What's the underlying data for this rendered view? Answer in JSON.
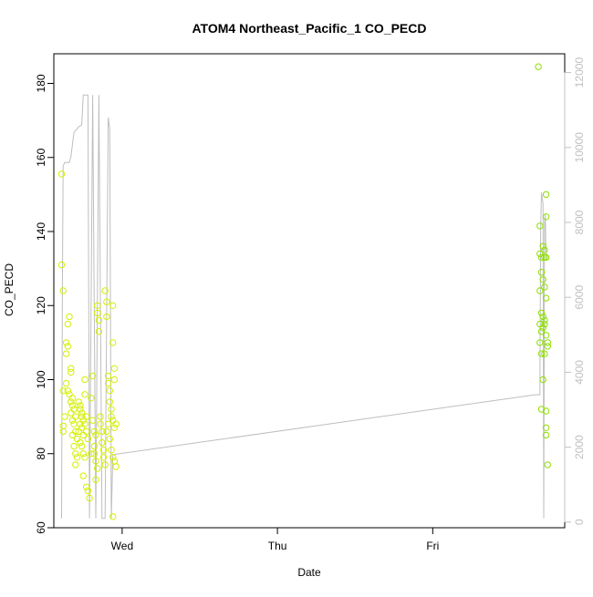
{
  "chart_data": {
    "type": "scatter",
    "title": "ATOM4 Northeast_Pacific_1 CO_PECD",
    "xlabel": "Date",
    "ylabel": "CO_PECD",
    "x_ticks": [
      "Wed",
      "Thu",
      "Fri"
    ],
    "y_ticks": [
      60,
      80,
      100,
      120,
      140,
      160,
      180
    ],
    "y_right_ticks": [
      0,
      2000,
      4000,
      6000,
      8000,
      10000,
      12000
    ],
    "ylim": [
      60,
      188
    ],
    "y_right_lim": [
      -150,
      12500
    ],
    "xlim_days_from_wed": [
      -0.44,
      2.85
    ],
    "colors": {
      "early_points": "#d4f000",
      "late_points": "#8ee000",
      "line": "#bebebe",
      "axis": "#000000",
      "right_axis": "#c0c0c0"
    },
    "points": [
      {
        "t": -0.39,
        "y": 155.5
      },
      {
        "t": -0.39,
        "y": 131
      },
      {
        "t": -0.38,
        "y": 124
      },
      {
        "t": -0.38,
        "y": 97
      },
      {
        "t": -0.37,
        "y": 90
      },
      {
        "t": -0.38,
        "y": 87.5
      },
      {
        "t": -0.38,
        "y": 86
      },
      {
        "t": -0.36,
        "y": 110
      },
      {
        "t": -0.36,
        "y": 107
      },
      {
        "t": -0.35,
        "y": 115
      },
      {
        "t": -0.34,
        "y": 117
      },
      {
        "t": -0.35,
        "y": 109
      },
      {
        "t": -0.33,
        "y": 103
      },
      {
        "t": -0.33,
        "y": 102
      },
      {
        "t": -0.36,
        "y": 99
      },
      {
        "t": -0.35,
        "y": 97
      },
      {
        "t": -0.34,
        "y": 96
      },
      {
        "t": -0.32,
        "y": 95
      },
      {
        "t": -0.33,
        "y": 94
      },
      {
        "t": -0.32,
        "y": 93
      },
      {
        "t": -0.31,
        "y": 92
      },
      {
        "t": -0.33,
        "y": 91
      },
      {
        "t": -0.3,
        "y": 90
      },
      {
        "t": -0.32,
        "y": 89
      },
      {
        "t": -0.31,
        "y": 88
      },
      {
        "t": -0.3,
        "y": 86
      },
      {
        "t": -0.32,
        "y": 85
      },
      {
        "t": -0.29,
        "y": 84
      },
      {
        "t": -0.31,
        "y": 82
      },
      {
        "t": -0.3,
        "y": 80
      },
      {
        "t": -0.29,
        "y": 79
      },
      {
        "t": -0.3,
        "y": 77
      },
      {
        "t": -0.28,
        "y": 94
      },
      {
        "t": -0.27,
        "y": 93
      },
      {
        "t": -0.27,
        "y": 92
      },
      {
        "t": -0.26,
        "y": 91
      },
      {
        "t": -0.26,
        "y": 90
      },
      {
        "t": -0.25,
        "y": 89
      },
      {
        "t": -0.27,
        "y": 88
      },
      {
        "t": -0.26,
        "y": 87
      },
      {
        "t": -0.28,
        "y": 86
      },
      {
        "t": -0.25,
        "y": 85
      },
      {
        "t": -0.27,
        "y": 83
      },
      {
        "t": -0.26,
        "y": 82
      },
      {
        "t": -0.25,
        "y": 80
      },
      {
        "t": -0.24,
        "y": 100
      },
      {
        "t": -0.24,
        "y": 96
      },
      {
        "t": -0.23,
        "y": 90
      },
      {
        "t": -0.24,
        "y": 88
      },
      {
        "t": -0.23,
        "y": 86
      },
      {
        "t": -0.22,
        "y": 84
      },
      {
        "t": -0.24,
        "y": 79
      },
      {
        "t": -0.25,
        "y": 74
      },
      {
        "t": -0.23,
        "y": 71
      },
      {
        "t": -0.22,
        "y": 70
      },
      {
        "t": -0.21,
        "y": 68
      },
      {
        "t": -0.2,
        "y": 80
      },
      {
        "t": -0.2,
        "y": 95
      },
      {
        "t": -0.19,
        "y": 101
      },
      {
        "t": -0.19,
        "y": 89
      },
      {
        "t": -0.18,
        "y": 86
      },
      {
        "t": -0.17,
        "y": 85
      },
      {
        "t": -0.18,
        "y": 82
      },
      {
        "t": -0.18,
        "y": 80
      },
      {
        "t": -0.17,
        "y": 78
      },
      {
        "t": -0.16,
        "y": 76
      },
      {
        "t": -0.17,
        "y": 73
      },
      {
        "t": -0.16,
        "y": 120
      },
      {
        "t": -0.16,
        "y": 118
      },
      {
        "t": -0.15,
        "y": 116
      },
      {
        "t": -0.15,
        "y": 113
      },
      {
        "t": -0.14,
        "y": 90
      },
      {
        "t": -0.14,
        "y": 88
      },
      {
        "t": -0.13,
        "y": 86
      },
      {
        "t": -0.13,
        "y": 83
      },
      {
        "t": -0.12,
        "y": 81
      },
      {
        "t": -0.12,
        "y": 79
      },
      {
        "t": -0.11,
        "y": 77
      },
      {
        "t": -0.11,
        "y": 124
      },
      {
        "t": -0.1,
        "y": 121
      },
      {
        "t": -0.1,
        "y": 117
      },
      {
        "t": -0.09,
        "y": 101
      },
      {
        "t": -0.09,
        "y": 99
      },
      {
        "t": -0.08,
        "y": 97
      },
      {
        "t": -0.08,
        "y": 94
      },
      {
        "t": -0.07,
        "y": 92
      },
      {
        "t": -0.07,
        "y": 90
      },
      {
        "t": -0.09,
        "y": 88
      },
      {
        "t": -0.1,
        "y": 86
      },
      {
        "t": -0.08,
        "y": 84
      },
      {
        "t": -0.07,
        "y": 81
      },
      {
        "t": -0.06,
        "y": 79
      },
      {
        "t": -0.06,
        "y": 120
      },
      {
        "t": -0.06,
        "y": 110
      },
      {
        "t": -0.05,
        "y": 103
      },
      {
        "t": -0.05,
        "y": 100
      },
      {
        "t": -0.06,
        "y": 89
      },
      {
        "t": -0.05,
        "y": 87
      },
      {
        "t": -0.05,
        "y": 78
      },
      {
        "t": -0.04,
        "y": 76.5
      },
      {
        "t": -0.06,
        "y": 63
      },
      {
        "t": -0.04,
        "y": 88
      },
      {
        "t": 2.68,
        "y": 184.5
      },
      {
        "t": 2.69,
        "y": 141.5
      },
      {
        "t": 2.69,
        "y": 134
      },
      {
        "t": 2.7,
        "y": 133
      },
      {
        "t": 2.7,
        "y": 129
      },
      {
        "t": 2.69,
        "y": 124
      },
      {
        "t": 2.7,
        "y": 118
      },
      {
        "t": 2.69,
        "y": 115
      },
      {
        "t": 2.7,
        "y": 113
      },
      {
        "t": 2.69,
        "y": 110
      },
      {
        "t": 2.71,
        "y": 136
      },
      {
        "t": 2.72,
        "y": 135
      },
      {
        "t": 2.72,
        "y": 133
      },
      {
        "t": 2.71,
        "y": 127
      },
      {
        "t": 2.72,
        "y": 125
      },
      {
        "t": 2.71,
        "y": 117
      },
      {
        "t": 2.72,
        "y": 116
      },
      {
        "t": 2.71,
        "y": 114
      },
      {
        "t": 2.7,
        "y": 107
      },
      {
        "t": 2.71,
        "y": 100
      },
      {
        "t": 2.73,
        "y": 150
      },
      {
        "t": 2.73,
        "y": 144
      },
      {
        "t": 2.73,
        "y": 133
      },
      {
        "t": 2.73,
        "y": 122
      },
      {
        "t": 2.72,
        "y": 115
      },
      {
        "t": 2.73,
        "y": 112
      },
      {
        "t": 2.72,
        "y": 107
      },
      {
        "t": 2.74,
        "y": 110
      },
      {
        "t": 2.74,
        "y": 109
      },
      {
        "t": 2.7,
        "y": 92
      },
      {
        "t": 2.73,
        "y": 91.5
      },
      {
        "t": 2.73,
        "y": 87
      },
      {
        "t": 2.73,
        "y": 85
      },
      {
        "t": 2.74,
        "y": 77
      }
    ],
    "line_series": {
      "name": "",
      "points": [
        {
          "t": -0.39,
          "y": 100
        },
        {
          "t": -0.385,
          "y": 6300
        },
        {
          "t": -0.38,
          "y": 9500
        },
        {
          "t": -0.37,
          "y": 9600
        },
        {
          "t": -0.34,
          "y": 9600
        },
        {
          "t": -0.33,
          "y": 9750
        },
        {
          "t": -0.31,
          "y": 10400
        },
        {
          "t": -0.28,
          "y": 10550
        },
        {
          "t": -0.26,
          "y": 10600
        },
        {
          "t": -0.25,
          "y": 11400
        },
        {
          "t": -0.22,
          "y": 11400
        },
        {
          "t": -0.21,
          "y": 100
        },
        {
          "t": -0.19,
          "y": 11400
        },
        {
          "t": -0.17,
          "y": 100
        },
        {
          "t": -0.15,
          "y": 11400
        },
        {
          "t": -0.13,
          "y": 100
        },
        {
          "t": -0.11,
          "y": 100
        },
        {
          "t": -0.09,
          "y": 10800
        },
        {
          "t": -0.08,
          "y": 10500
        },
        {
          "t": -0.07,
          "y": 100
        },
        {
          "t": -0.06,
          "y": 1800
        },
        {
          "t": 2.66,
          "y": 3400
        },
        {
          "t": 2.69,
          "y": 3400
        },
        {
          "t": 2.695,
          "y": 7800
        },
        {
          "t": 2.7,
          "y": 8800
        },
        {
          "t": 2.71,
          "y": 8500
        },
        {
          "t": 2.715,
          "y": 100
        },
        {
          "t": 2.72,
          "y": 8000
        },
        {
          "t": 2.725,
          "y": 8200
        },
        {
          "t": 2.73,
          "y": 7000
        }
      ]
    }
  }
}
